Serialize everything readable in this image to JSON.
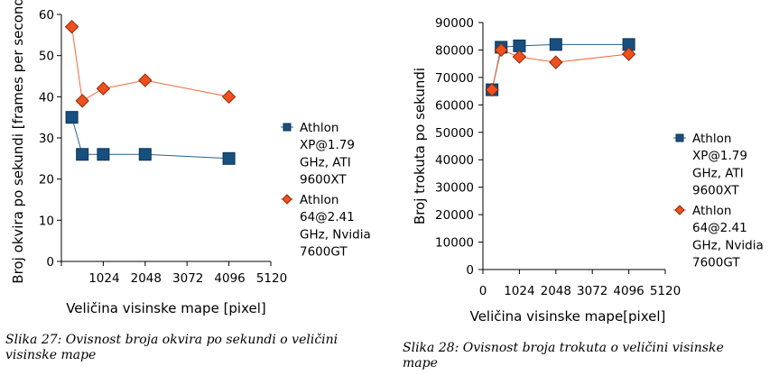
{
  "colors": {
    "series_blue_fill": "#17507f",
    "series_blue_stroke": "#0c3356",
    "series_blue_line": "#2a5f8e",
    "series_orange_fill": "#f0501e",
    "series_orange_stroke": "#8a2a08",
    "series_orange_line": "#f06a3a",
    "axis": "#000000"
  },
  "chart_data": [
    {
      "type": "scatter",
      "xlabel": "Veličina visinske mape [pixel]",
      "ylabel": "Broj okvira po sekundi [frames per second]",
      "xlim": [
        0,
        5120
      ],
      "ylim": [
        0,
        60
      ],
      "xticks": [
        "1024",
        "2048",
        "3072",
        "4096",
        "5120"
      ],
      "yticks": [
        "0",
        "10",
        "20",
        "30",
        "40",
        "50",
        "60"
      ],
      "legend_position": "right",
      "series": [
        {
          "name_lines": [
            "Athlon",
            "XP@1.79",
            "GHz, ATI",
            "9600XT"
          ],
          "marker": "square",
          "x": [
            256,
            512,
            1024,
            2048,
            4096
          ],
          "y": [
            35,
            26,
            26,
            26,
            25
          ]
        },
        {
          "name_lines": [
            "Athlon",
            "64@2.41",
            "GHz, Nvidia",
            "7600GT"
          ],
          "marker": "diamond",
          "x": [
            256,
            512,
            1024,
            2048,
            4096
          ],
          "y": [
            57,
            39,
            42,
            44,
            40
          ]
        }
      ],
      "caption": [
        "Slika  27: Ovisnost broja okvira po sekundi o veličini",
        "visinske mape"
      ]
    },
    {
      "type": "scatter",
      "xlabel": "Veličina visinske mape[pixel]",
      "ylabel": "Broj trokuta po sekundi",
      "xlim": [
        0,
        5120
      ],
      "ylim": [
        0,
        90000
      ],
      "xticks": [
        "0",
        "1024",
        "2048",
        "3072",
        "4096",
        "5120"
      ],
      "yticks": [
        "0",
        "10000",
        "20000",
        "30000",
        "40000",
        "50000",
        "60000",
        "70000",
        "80000",
        "90000"
      ],
      "legend_position": "right",
      "series": [
        {
          "name_lines": [
            "Athlon",
            "XP@1.79",
            "GHz, ATI",
            "9600XT"
          ],
          "marker": "square",
          "x": [
            256,
            512,
            1024,
            2048,
            4096
          ],
          "y": [
            65500,
            81000,
            81500,
            82000,
            82000
          ]
        },
        {
          "name_lines": [
            "Athlon",
            "64@2.41",
            "GHz, Nvidia",
            "7600GT"
          ],
          "marker": "diamond",
          "x": [
            256,
            512,
            1024,
            2048,
            4096
          ],
          "y": [
            65500,
            80000,
            77500,
            75500,
            78500
          ]
        }
      ],
      "caption": [
        "Slika  28: Ovisnost broja trokuta o veličini visinske",
        "mape"
      ]
    }
  ]
}
